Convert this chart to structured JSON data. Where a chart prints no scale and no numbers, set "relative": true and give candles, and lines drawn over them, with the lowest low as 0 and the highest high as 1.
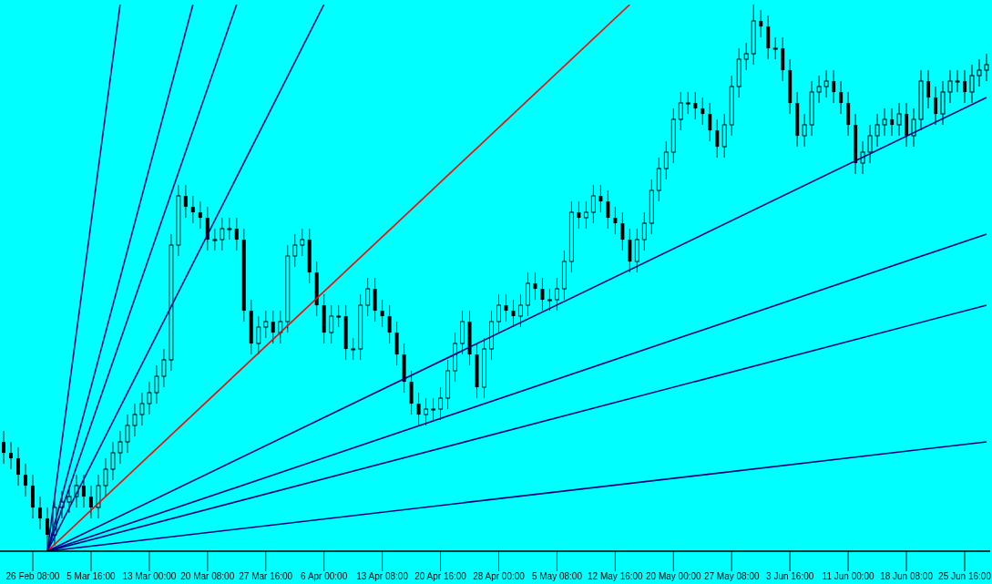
{
  "chart_data": {
    "type": "candlestick",
    "relative": true,
    "color": "#000000",
    "grid": false,
    "marker": "none",
    "categories": [
      null,
      null,
      null,
      null,
      "26 Feb 08:00",
      null,
      null,
      null,
      null,
      null,
      null,
      null,
      "5 Mar 16:00",
      null,
      null,
      null,
      null,
      null,
      null,
      null,
      "13 Mar 00:00",
      null,
      null,
      null,
      null,
      null,
      null,
      null,
      "20 Mar 08:00",
      null,
      null,
      null,
      null,
      null,
      null,
      null,
      "27 Mar 16:00",
      null,
      null,
      null,
      null,
      null,
      null,
      null,
      "6 Apr 00:00",
      null,
      null,
      null,
      null,
      null,
      null,
      null,
      "13 Apr 08:00",
      null,
      null,
      null,
      null,
      null,
      null,
      null,
      "20 Apr 16:00",
      null,
      null,
      null,
      null,
      null,
      null,
      null,
      "28 Apr 00:00",
      null,
      null,
      null,
      null,
      null,
      null,
      null,
      "5 May 08:00",
      null,
      null,
      null,
      null,
      null,
      null,
      null,
      "12 May 16:00",
      null,
      null,
      null,
      null,
      null,
      null,
      null,
      "20 May 00:00",
      null,
      null,
      null,
      null,
      null,
      null,
      null,
      "27 May 08:00",
      null,
      null,
      null,
      null,
      null,
      null,
      null,
      "3 Jun 16:00",
      null,
      null,
      null,
      null,
      null,
      null,
      null,
      "11 Jun 00:00",
      null,
      null,
      null,
      null,
      null,
      null,
      null,
      "18 Jun 08:00",
      null,
      null,
      null,
      null,
      null,
      null,
      null,
      "25 Jun 16:00",
      null,
      null,
      null
    ],
    "ohlc": [
      [
        0.2,
        0.22,
        0.16,
        0.18
      ],
      [
        0.18,
        0.2,
        0.15,
        0.17
      ],
      [
        0.17,
        0.19,
        0.12,
        0.14
      ],
      [
        0.14,
        0.16,
        0.1,
        0.12
      ],
      [
        0.12,
        0.14,
        0.06,
        0.08
      ],
      [
        0.08,
        0.1,
        0.04,
        0.06
      ],
      [
        0.06,
        0.08,
        0,
        0.03
      ],
      [
        0.03,
        0.1,
        0.01,
        0.08
      ],
      [
        0.08,
        0.11,
        0.06,
        0.09
      ],
      [
        0.09,
        0.12,
        0.07,
        0.1
      ],
      [
        0.1,
        0.14,
        0.08,
        0.12
      ],
      [
        0.12,
        0.14,
        0.08,
        0.1
      ],
      [
        0.1,
        0.12,
        0.06,
        0.08
      ],
      [
        0.08,
        0.14,
        0.06,
        0.12
      ],
      [
        0.12,
        0.17,
        0.1,
        0.15
      ],
      [
        0.15,
        0.2,
        0.13,
        0.18
      ],
      [
        0.18,
        0.22,
        0.16,
        0.2
      ],
      [
        0.2,
        0.25,
        0.18,
        0.23
      ],
      [
        0.23,
        0.27,
        0.21,
        0.25
      ],
      [
        0.25,
        0.29,
        0.23,
        0.27
      ],
      [
        0.27,
        0.31,
        0.25,
        0.29
      ],
      [
        0.29,
        0.34,
        0.27,
        0.32
      ],
      [
        0.32,
        0.37,
        0.3,
        0.35
      ],
      [
        0.35,
        0.58,
        0.33,
        0.56
      ],
      [
        0.56,
        0.67,
        0.54,
        0.65
      ],
      [
        0.65,
        0.67,
        0.61,
        0.63
      ],
      [
        0.63,
        0.65,
        0.6,
        0.62
      ],
      [
        0.62,
        0.64,
        0.59,
        0.61
      ],
      [
        0.61,
        0.63,
        0.55,
        0.57
      ],
      [
        0.57,
        0.59,
        0.55,
        0.57
      ],
      [
        0.57,
        0.61,
        0.55,
        0.59
      ],
      [
        0.59,
        0.61,
        0.57,
        0.59
      ],
      [
        0.59,
        0.61,
        0.55,
        0.57
      ],
      [
        0.57,
        0.59,
        0.42,
        0.44
      ],
      [
        0.44,
        0.46,
        0.36,
        0.38
      ],
      [
        0.38,
        0.43,
        0.36,
        0.41
      ],
      [
        0.41,
        0.44,
        0.39,
        0.42
      ],
      [
        0.42,
        0.44,
        0.38,
        0.4
      ],
      [
        0.4,
        0.44,
        0.38,
        0.42
      ],
      [
        0.42,
        0.56,
        0.4,
        0.54
      ],
      [
        0.54,
        0.58,
        0.52,
        0.56
      ],
      [
        0.56,
        0.59,
        0.54,
        0.57
      ],
      [
        0.57,
        0.59,
        0.49,
        0.51
      ],
      [
        0.51,
        0.53,
        0.43,
        0.45
      ],
      [
        0.45,
        0.47,
        0.38,
        0.4
      ],
      [
        0.4,
        0.45,
        0.38,
        0.43
      ],
      [
        0.43,
        0.45,
        0.41,
        0.43
      ],
      [
        0.43,
        0.45,
        0.35,
        0.37
      ],
      [
        0.37,
        0.39,
        0.35,
        0.37
      ],
      [
        0.37,
        0.47,
        0.35,
        0.45
      ],
      [
        0.45,
        0.5,
        0.43,
        0.48
      ],
      [
        0.48,
        0.5,
        0.42,
        0.44
      ],
      [
        0.44,
        0.46,
        0.41,
        0.43
      ],
      [
        0.43,
        0.45,
        0.38,
        0.4
      ],
      [
        0.4,
        0.42,
        0.34,
        0.36
      ],
      [
        0.36,
        0.38,
        0.29,
        0.31
      ],
      [
        0.31,
        0.33,
        0.25,
        0.27
      ],
      [
        0.27,
        0.29,
        0.23,
        0.25
      ],
      [
        0.25,
        0.28,
        0.23,
        0.26
      ],
      [
        0.26,
        0.28,
        0.24,
        0.26
      ],
      [
        0.26,
        0.3,
        0.24,
        0.28
      ],
      [
        0.28,
        0.35,
        0.26,
        0.33
      ],
      [
        0.33,
        0.4,
        0.31,
        0.38
      ],
      [
        0.38,
        0.44,
        0.36,
        0.42
      ],
      [
        0.42,
        0.44,
        0.34,
        0.36
      ],
      [
        0.36,
        0.38,
        0.28,
        0.3
      ],
      [
        0.3,
        0.39,
        0.28,
        0.37
      ],
      [
        0.37,
        0.44,
        0.35,
        0.42
      ],
      [
        0.42,
        0.47,
        0.4,
        0.45
      ],
      [
        0.45,
        0.47,
        0.42,
        0.44
      ],
      [
        0.44,
        0.46,
        0.41,
        0.43
      ],
      [
        0.43,
        0.47,
        0.41,
        0.45
      ],
      [
        0.45,
        0.51,
        0.43,
        0.49
      ],
      [
        0.49,
        0.51,
        0.46,
        0.48
      ],
      [
        0.48,
        0.5,
        0.44,
        0.46
      ],
      [
        0.46,
        0.48,
        0.44,
        0.46
      ],
      [
        0.46,
        0.5,
        0.44,
        0.48
      ],
      [
        0.48,
        0.55,
        0.46,
        0.53
      ],
      [
        0.53,
        0.64,
        0.51,
        0.62
      ],
      [
        0.62,
        0.64,
        0.59,
        0.61
      ],
      [
        0.61,
        0.64,
        0.59,
        0.62
      ],
      [
        0.62,
        0.67,
        0.6,
        0.65
      ],
      [
        0.65,
        0.67,
        0.62,
        0.64
      ],
      [
        0.64,
        0.66,
        0.59,
        0.61
      ],
      [
        0.61,
        0.63,
        0.58,
        0.6
      ],
      [
        0.6,
        0.62,
        0.55,
        0.57
      ],
      [
        0.57,
        0.59,
        0.51,
        0.53
      ],
      [
        0.53,
        0.59,
        0.51,
        0.57
      ],
      [
        0.57,
        0.62,
        0.55,
        0.6
      ],
      [
        0.6,
        0.68,
        0.58,
        0.66
      ],
      [
        0.66,
        0.72,
        0.64,
        0.7
      ],
      [
        0.7,
        0.75,
        0.68,
        0.73
      ],
      [
        0.73,
        0.81,
        0.71,
        0.79
      ],
      [
        0.79,
        0.84,
        0.77,
        0.82
      ],
      [
        0.82,
        0.84,
        0.8,
        0.82
      ],
      [
        0.82,
        0.84,
        0.79,
        0.81
      ],
      [
        0.81,
        0.83,
        0.78,
        0.8
      ],
      [
        0.8,
        0.82,
        0.75,
        0.77
      ],
      [
        0.77,
        0.79,
        0.72,
        0.74
      ],
      [
        0.74,
        0.8,
        0.72,
        0.78
      ],
      [
        0.78,
        0.87,
        0.76,
        0.85
      ],
      [
        0.85,
        0.92,
        0.83,
        0.9
      ],
      [
        0.9,
        0.93,
        0.88,
        0.91
      ],
      [
        0.91,
        1,
        0.89,
        0.97
      ],
      [
        0.97,
        0.99,
        0.94,
        0.96
      ],
      [
        0.96,
        0.98,
        0.9,
        0.92
      ],
      [
        0.92,
        0.94,
        0.9,
        0.92
      ],
      [
        0.92,
        0.94,
        0.86,
        0.88
      ],
      [
        0.88,
        0.9,
        0.8,
        0.82
      ],
      [
        0.82,
        0.84,
        0.74,
        0.76
      ],
      [
        0.76,
        0.8,
        0.74,
        0.78
      ],
      [
        0.78,
        0.86,
        0.76,
        0.84
      ],
      [
        0.84,
        0.87,
        0.82,
        0.85
      ],
      [
        0.85,
        0.88,
        0.83,
        0.86
      ],
      [
        0.86,
        0.88,
        0.82,
        0.84
      ],
      [
        0.84,
        0.86,
        0.8,
        0.82
      ],
      [
        0.82,
        0.84,
        0.76,
        0.78
      ],
      [
        0.78,
        0.8,
        0.69,
        0.71
      ],
      [
        0.71,
        0.75,
        0.69,
        0.73
      ],
      [
        0.73,
        0.78,
        0.71,
        0.76
      ],
      [
        0.76,
        0.8,
        0.74,
        0.78
      ],
      [
        0.78,
        0.81,
        0.76,
        0.79
      ],
      [
        0.79,
        0.81,
        0.76,
        0.78
      ],
      [
        0.78,
        0.82,
        0.76,
        0.8
      ],
      [
        0.8,
        0.82,
        0.74,
        0.76
      ],
      [
        0.76,
        0.81,
        0.74,
        0.79
      ],
      [
        0.79,
        0.88,
        0.77,
        0.86
      ],
      [
        0.86,
        0.88,
        0.81,
        0.83
      ],
      [
        0.83,
        0.85,
        0.78,
        0.8
      ],
      [
        0.8,
        0.86,
        0.78,
        0.84
      ],
      [
        0.84,
        0.88,
        0.82,
        0.86
      ],
      [
        0.86,
        0.88,
        0.84,
        0.86
      ],
      [
        0.86,
        0.88,
        0.82,
        0.84
      ],
      [
        0.84,
        0.89,
        0.82,
        0.87
      ],
      [
        0.87,
        0.9,
        0.85,
        0.88
      ],
      [
        0.88,
        0.91,
        0.86,
        0.89
      ]
    ],
    "series": [
      {
        "type": "line",
        "color": "#000080",
        "values": [
          null,
          null,
          null,
          null,
          null,
          null,
          0,
          null,
          null,
          null,
          null,
          null,
          null,
          null,
          null,
          null,
          1,
          null,
          null,
          null,
          null,
          null,
          null,
          null,
          null,
          null,
          null,
          null,
          null,
          null,
          null,
          null,
          null,
          null,
          null,
          null,
          null,
          null,
          null,
          null,
          null,
          null,
          null,
          null,
          null,
          null,
          null,
          null,
          null,
          null,
          null,
          null,
          null,
          null,
          null,
          null,
          null,
          null,
          null,
          null,
          null,
          null,
          null,
          null,
          null,
          null,
          null,
          null,
          null,
          null,
          null,
          null,
          null,
          null,
          null,
          null,
          null,
          null,
          null,
          null,
          null,
          null,
          null,
          null,
          null,
          null,
          null,
          null,
          null,
          null,
          null,
          null,
          null,
          null,
          null,
          null,
          null,
          null,
          null,
          null,
          null,
          null,
          null,
          null,
          null,
          null,
          null,
          null,
          null,
          null,
          null,
          null,
          null,
          null,
          null,
          null,
          null,
          null,
          null,
          null,
          null,
          null,
          null,
          null,
          null,
          null,
          null,
          null,
          null,
          null,
          null,
          null,
          null,
          null,
          null,
          null
        ]
      },
      {
        "type": "line",
        "color": "#000080",
        "values": [
          null,
          null,
          null,
          null,
          null,
          null,
          0,
          null,
          null,
          null,
          null,
          null,
          null,
          null,
          null,
          null,
          null,
          null,
          null,
          null,
          null,
          null,
          null,
          null,
          null,
          null,
          1,
          null,
          null,
          null,
          null,
          null,
          null,
          null,
          null,
          null,
          null,
          null,
          null,
          null,
          null,
          null,
          null,
          null,
          null,
          null,
          null,
          null,
          null,
          null,
          null,
          null,
          null,
          null,
          null,
          null,
          null,
          null,
          null,
          null,
          null,
          null,
          null,
          null,
          null,
          null,
          null,
          null,
          null,
          null,
          null,
          null,
          null,
          null,
          null,
          null,
          null,
          null,
          null,
          null,
          null,
          null,
          null,
          null,
          null,
          null,
          null,
          null,
          null,
          null,
          null,
          null,
          null,
          null,
          null,
          null,
          null,
          null,
          null,
          null,
          null,
          null,
          null,
          null,
          null,
          null,
          null,
          null,
          null,
          null,
          null,
          null,
          null,
          null,
          null,
          null,
          null,
          null,
          null,
          null,
          null,
          null,
          null,
          null,
          null,
          null,
          null,
          null,
          null,
          null,
          null,
          null,
          null,
          null,
          null,
          null
        ]
      },
      {
        "type": "line",
        "color": "#000080",
        "values": [
          null,
          null,
          null,
          null,
          null,
          null,
          0,
          null,
          null,
          null,
          null,
          null,
          null,
          null,
          null,
          null,
          null,
          null,
          null,
          null,
          null,
          null,
          null,
          null,
          null,
          null,
          null,
          null,
          null,
          null,
          null,
          null,
          1,
          null,
          null,
          null,
          null,
          null,
          null,
          null,
          null,
          null,
          null,
          null,
          null,
          null,
          null,
          null,
          null,
          null,
          null,
          null,
          null,
          null,
          null,
          null,
          null,
          null,
          null,
          null,
          null,
          null,
          null,
          null,
          null,
          null,
          null,
          null,
          null,
          null,
          null,
          null,
          null,
          null,
          null,
          null,
          null,
          null,
          null,
          null,
          null,
          null,
          null,
          null,
          null,
          null,
          null,
          null,
          null,
          null,
          null,
          null,
          null,
          null,
          null,
          null,
          null,
          null,
          null,
          null,
          null,
          null,
          null,
          null,
          null,
          null,
          null,
          null,
          null,
          null,
          null,
          null,
          null,
          null,
          null,
          null,
          null,
          null,
          null,
          null,
          null,
          null,
          null,
          null,
          null,
          null,
          null,
          null,
          null,
          null,
          null,
          null,
          null,
          null,
          null,
          null
        ]
      },
      {
        "type": "line",
        "color": "#000080",
        "values": [
          null,
          null,
          null,
          null,
          null,
          null,
          0,
          null,
          null,
          null,
          null,
          null,
          null,
          null,
          null,
          null,
          null,
          null,
          null,
          null,
          null,
          null,
          null,
          null,
          null,
          null,
          null,
          null,
          null,
          null,
          null,
          null,
          null,
          null,
          null,
          null,
          null,
          null,
          null,
          null,
          null,
          null,
          null,
          null,
          1,
          null,
          null,
          null,
          null,
          null,
          null,
          null,
          null,
          null,
          null,
          null,
          null,
          null,
          null,
          null,
          null,
          null,
          null,
          null,
          null,
          null,
          null,
          null,
          null,
          null,
          null,
          null,
          null,
          null,
          null,
          null,
          null,
          null,
          null,
          null,
          null,
          null,
          null,
          null,
          null,
          null,
          null,
          null,
          null,
          null,
          null,
          null,
          null,
          null,
          null,
          null,
          null,
          null,
          null,
          null,
          null,
          null,
          null,
          null,
          null,
          null,
          null,
          null,
          null,
          null,
          null,
          null,
          null,
          null,
          null,
          null,
          null,
          null,
          null,
          null,
          null,
          null,
          null,
          null,
          null,
          null,
          null,
          null,
          null,
          null,
          null,
          null,
          null,
          null,
          null,
          null
        ]
      },
      {
        "type": "line",
        "color": "#ff0000",
        "values": [
          null,
          null,
          null,
          null,
          null,
          null,
          0,
          null,
          null,
          null,
          null,
          null,
          null,
          null,
          null,
          null,
          null,
          null,
          null,
          null,
          null,
          null,
          null,
          null,
          null,
          null,
          null,
          null,
          null,
          null,
          null,
          null,
          null,
          null,
          null,
          null,
          null,
          null,
          null,
          null,
          null,
          null,
          null,
          null,
          null,
          null,
          null,
          null,
          null,
          null,
          null,
          null,
          null,
          null,
          null,
          null,
          null,
          null,
          null,
          null,
          null,
          null,
          null,
          null,
          null,
          null,
          null,
          null,
          null,
          null,
          null,
          null,
          null,
          null,
          null,
          null,
          null,
          null,
          null,
          null,
          null,
          null,
          null,
          null,
          null,
          null,
          1,
          null,
          null,
          null,
          null,
          null,
          null,
          null,
          null,
          null,
          null,
          null,
          null,
          null,
          null,
          null,
          null,
          null,
          null,
          null,
          null,
          null,
          null,
          null,
          null,
          null,
          null,
          null,
          null,
          null,
          null,
          null,
          null,
          null,
          null,
          null,
          null,
          null,
          null,
          null,
          null,
          null,
          null,
          null,
          null,
          null,
          null,
          null,
          null,
          null
        ]
      },
      {
        "type": "line",
        "color": "#000080",
        "values": [
          null,
          null,
          null,
          null,
          null,
          null,
          0,
          null,
          null,
          null,
          null,
          null,
          null,
          null,
          null,
          null,
          null,
          null,
          null,
          null,
          null,
          null,
          null,
          null,
          null,
          null,
          null,
          null,
          null,
          null,
          null,
          null,
          null,
          null,
          null,
          null,
          null,
          null,
          null,
          null,
          null,
          null,
          null,
          null,
          null,
          null,
          null,
          null,
          null,
          null,
          null,
          null,
          null,
          null,
          null,
          null,
          null,
          null,
          null,
          null,
          null,
          null,
          null,
          null,
          null,
          null,
          null,
          null,
          null,
          null,
          null,
          null,
          null,
          null,
          null,
          null,
          null,
          null,
          null,
          null,
          null,
          null,
          null,
          null,
          null,
          null,
          null,
          null,
          null,
          null,
          null,
          null,
          null,
          null,
          null,
          null,
          null,
          null,
          null,
          null,
          null,
          null,
          null,
          null,
          null,
          null,
          null,
          null,
          null,
          null,
          null,
          null,
          null,
          null,
          null,
          null,
          null,
          null,
          null,
          null,
          null,
          null,
          null,
          null,
          null,
          null,
          null,
          null,
          null,
          null,
          null,
          null,
          null,
          null,
          null,
          0.83
        ]
      },
      {
        "type": "line",
        "color": "#000080",
        "values": [
          null,
          null,
          null,
          null,
          null,
          null,
          0,
          null,
          null,
          null,
          null,
          null,
          null,
          null,
          null,
          null,
          null,
          null,
          null,
          null,
          null,
          null,
          null,
          null,
          null,
          null,
          null,
          null,
          null,
          null,
          null,
          null,
          null,
          null,
          null,
          null,
          null,
          null,
          null,
          null,
          null,
          null,
          null,
          null,
          null,
          null,
          null,
          null,
          null,
          null,
          null,
          null,
          null,
          null,
          null,
          null,
          null,
          null,
          null,
          null,
          null,
          null,
          null,
          null,
          null,
          null,
          null,
          null,
          null,
          null,
          null,
          null,
          null,
          null,
          null,
          null,
          null,
          null,
          null,
          null,
          null,
          null,
          null,
          null,
          null,
          null,
          null,
          null,
          null,
          null,
          null,
          null,
          null,
          null,
          null,
          null,
          null,
          null,
          null,
          null,
          null,
          null,
          null,
          null,
          null,
          null,
          null,
          null,
          null,
          null,
          null,
          null,
          null,
          null,
          null,
          null,
          null,
          null,
          null,
          null,
          null,
          null,
          null,
          null,
          null,
          null,
          null,
          null,
          null,
          null,
          null,
          null,
          null,
          null,
          null,
          0.58
        ]
      },
      {
        "type": "line",
        "color": "#000080",
        "values": [
          null,
          null,
          null,
          null,
          null,
          null,
          0,
          null,
          null,
          null,
          null,
          null,
          null,
          null,
          null,
          null,
          null,
          null,
          null,
          null,
          null,
          null,
          null,
          null,
          null,
          null,
          null,
          null,
          null,
          null,
          null,
          null,
          null,
          null,
          null,
          null,
          null,
          null,
          null,
          null,
          null,
          null,
          null,
          null,
          null,
          null,
          null,
          null,
          null,
          null,
          null,
          null,
          null,
          null,
          null,
          null,
          null,
          null,
          null,
          null,
          null,
          null,
          null,
          null,
          null,
          null,
          null,
          null,
          null,
          null,
          null,
          null,
          null,
          null,
          null,
          null,
          null,
          null,
          null,
          null,
          null,
          null,
          null,
          null,
          null,
          null,
          null,
          null,
          null,
          null,
          null,
          null,
          null,
          null,
          null,
          null,
          null,
          null,
          null,
          null,
          null,
          null,
          null,
          null,
          null,
          null,
          null,
          null,
          null,
          null,
          null,
          null,
          null,
          null,
          null,
          null,
          null,
          null,
          null,
          null,
          null,
          null,
          null,
          null,
          null,
          null,
          null,
          null,
          null,
          null,
          null,
          null,
          null,
          null,
          null,
          0.45
        ]
      },
      {
        "type": "line",
        "color": "#000080",
        "values": [
          null,
          null,
          null,
          null,
          null,
          null,
          0,
          null,
          null,
          null,
          null,
          null,
          null,
          null,
          null,
          null,
          null,
          null,
          null,
          null,
          null,
          null,
          null,
          null,
          null,
          null,
          null,
          null,
          null,
          null,
          null,
          null,
          null,
          null,
          null,
          null,
          null,
          null,
          null,
          null,
          null,
          null,
          null,
          null,
          null,
          null,
          null,
          null,
          null,
          null,
          null,
          null,
          null,
          null,
          null,
          null,
          null,
          null,
          null,
          null,
          null,
          null,
          null,
          null,
          null,
          null,
          null,
          null,
          null,
          null,
          null,
          null,
          null,
          null,
          null,
          null,
          null,
          null,
          null,
          null,
          null,
          null,
          null,
          null,
          null,
          null,
          null,
          null,
          null,
          null,
          null,
          null,
          null,
          null,
          null,
          null,
          null,
          null,
          null,
          null,
          null,
          null,
          null,
          null,
          null,
          null,
          null,
          null,
          null,
          null,
          null,
          null,
          null,
          null,
          null,
          null,
          null,
          null,
          null,
          null,
          null,
          null,
          null,
          null,
          null,
          null,
          null,
          null,
          null,
          null,
          null,
          null,
          null,
          null,
          null,
          0.2
        ]
      }
    ]
  }
}
